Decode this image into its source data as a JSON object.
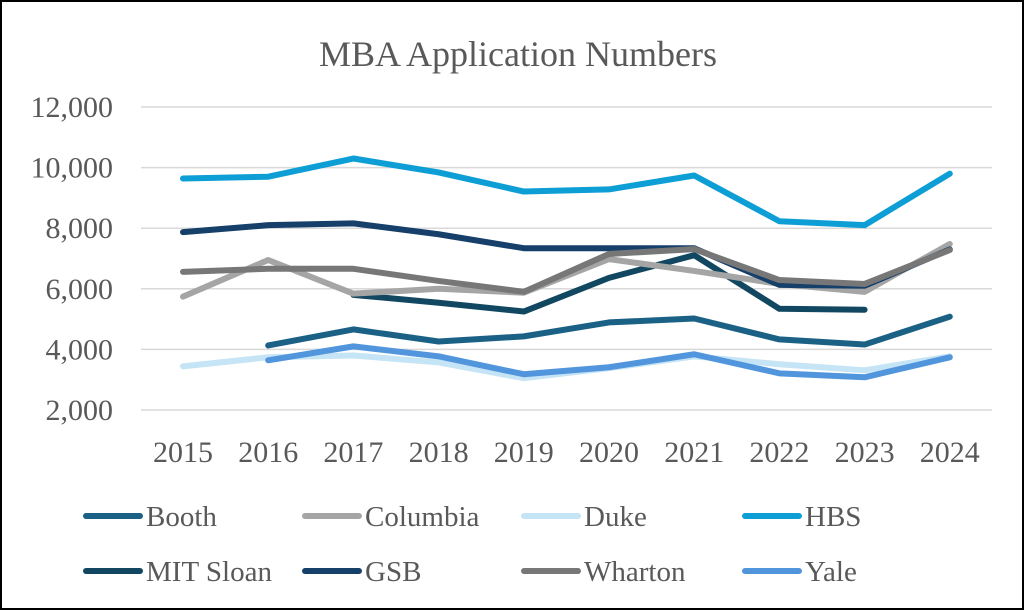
{
  "chart_data": {
    "type": "line",
    "title": "MBA Application Numbers",
    "xlabel": "",
    "ylabel": "",
    "ylim": [
      2000,
      12000
    ],
    "yticks": [
      2000,
      4000,
      6000,
      8000,
      10000,
      12000
    ],
    "ytick_labels": [
      "2,000",
      "4,000",
      "6,000",
      "8,000",
      "10,000",
      "12,000"
    ],
    "grid": true,
    "legend_position": "bottom",
    "categories": [
      "2015",
      "2016",
      "2017",
      "2018",
      "2019",
      "2020",
      "2021",
      "2022",
      "2023",
      "2024"
    ],
    "series": [
      {
        "name": "Booth",
        "color": "#1b6185",
        "values": [
          null,
          4130,
          4660,
          4260,
          4430,
          4890,
          5020,
          4330,
          4160,
          5080
        ]
      },
      {
        "name": "Columbia",
        "color": "#a5a5a5",
        "values": [
          5740,
          6950,
          5840,
          6000,
          5870,
          6980,
          6590,
          6160,
          5900,
          7480
        ]
      },
      {
        "name": "Duke",
        "color": "#c5e4f5",
        "values": [
          3440,
          3740,
          3800,
          3570,
          3050,
          3380,
          3770,
          3510,
          3310,
          3770
        ]
      },
      {
        "name": "HBS",
        "color": "#0e9ed6",
        "values": [
          9640,
          9700,
          10300,
          9840,
          9210,
          9280,
          9740,
          8230,
          8100,
          9800
        ]
      },
      {
        "name": "MIT Sloan",
        "color": "#114760",
        "values": [
          null,
          null,
          5800,
          5540,
          5250,
          6360,
          7110,
          5340,
          5310,
          null
        ]
      },
      {
        "name": "GSB",
        "color": "#163f6a",
        "values": [
          7870,
          8100,
          8160,
          7800,
          7340,
          7340,
          7340,
          6130,
          6100,
          7300
        ]
      },
      {
        "name": "Wharton",
        "color": "#777777",
        "values": [
          6560,
          6660,
          6660,
          6260,
          5900,
          7150,
          7310,
          6290,
          6160,
          7280
        ]
      },
      {
        "name": "Yale",
        "color": "#5195dc",
        "values": [
          null,
          3640,
          4100,
          3770,
          3180,
          3410,
          3840,
          3210,
          3080,
          3740
        ]
      }
    ]
  }
}
